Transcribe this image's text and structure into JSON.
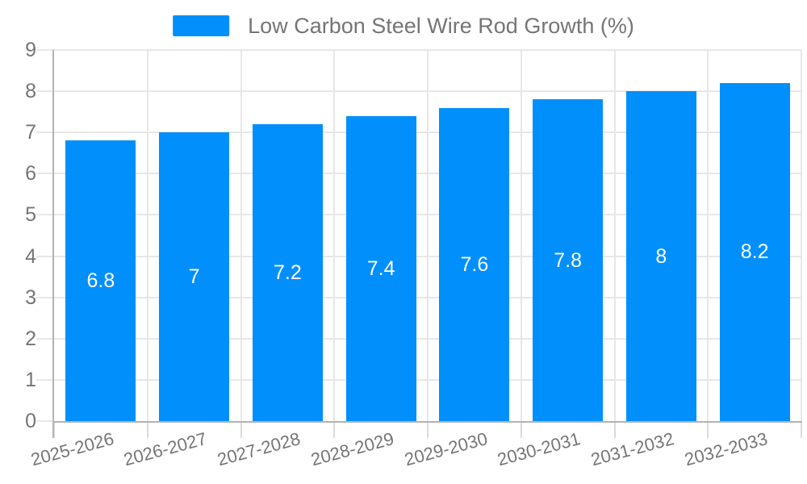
{
  "chart_data": {
    "type": "bar",
    "title": "",
    "legend": {
      "position": "top",
      "label": "Low Carbon Steel Wire Rod Growth (%)"
    },
    "categories": [
      "2025-2026",
      "2026-2027",
      "2027-2028",
      "2028-2029",
      "2029-2030",
      "2030-2031",
      "2031-2032",
      "2032-2033"
    ],
    "series": [
      {
        "name": "Low Carbon Steel Wire Rod Growth (%)",
        "values": [
          6.8,
          7,
          7.2,
          7.4,
          7.6,
          7.8,
          8,
          8.2
        ]
      }
    ],
    "data_labels": [
      "6.8",
      "7",
      "7.2",
      "7.4",
      "7.6",
      "7.8",
      "8",
      "8.2"
    ],
    "xlabel": "",
    "ylabel": "",
    "ylim": [
      0,
      9
    ],
    "yticks": [
      0,
      1,
      2,
      3,
      4,
      5,
      6,
      7,
      8,
      9
    ],
    "grid": "horizontal-and-vertical",
    "colors": {
      "bar": "#008FFB",
      "datalabel": "#ffffff",
      "axis_label": "#757575",
      "legend_label": "#757575",
      "gridline": "#e7e7e7",
      "tick": "#dadada",
      "axis_line": "#b3b3b3",
      "background": "#ffffff"
    }
  }
}
